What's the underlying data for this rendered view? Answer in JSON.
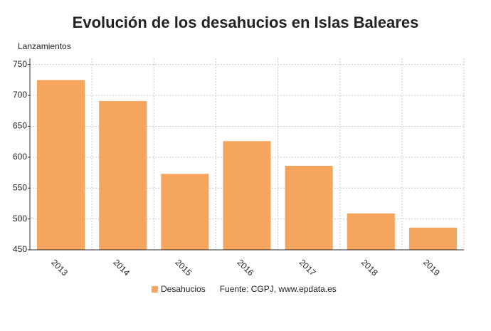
{
  "chart_data": {
    "type": "bar",
    "title": "Evolución de los desahucios en Islas Baleares",
    "y_label": "Lanzamientos",
    "categories": [
      "2013",
      "2014",
      "2015",
      "2016",
      "2017",
      "2018",
      "2019"
    ],
    "series": [
      {
        "name": "Desahucios",
        "color": "#f5a55d",
        "values": [
          725,
          691,
          573,
          626,
          586,
          509,
          486
        ]
      }
    ],
    "source": "Fuente: CGPJ, www.epdata.es",
    "ylim": [
      450,
      760
    ],
    "yticks": [
      450,
      500,
      550,
      600,
      650,
      700,
      750
    ],
    "grid": true
  }
}
